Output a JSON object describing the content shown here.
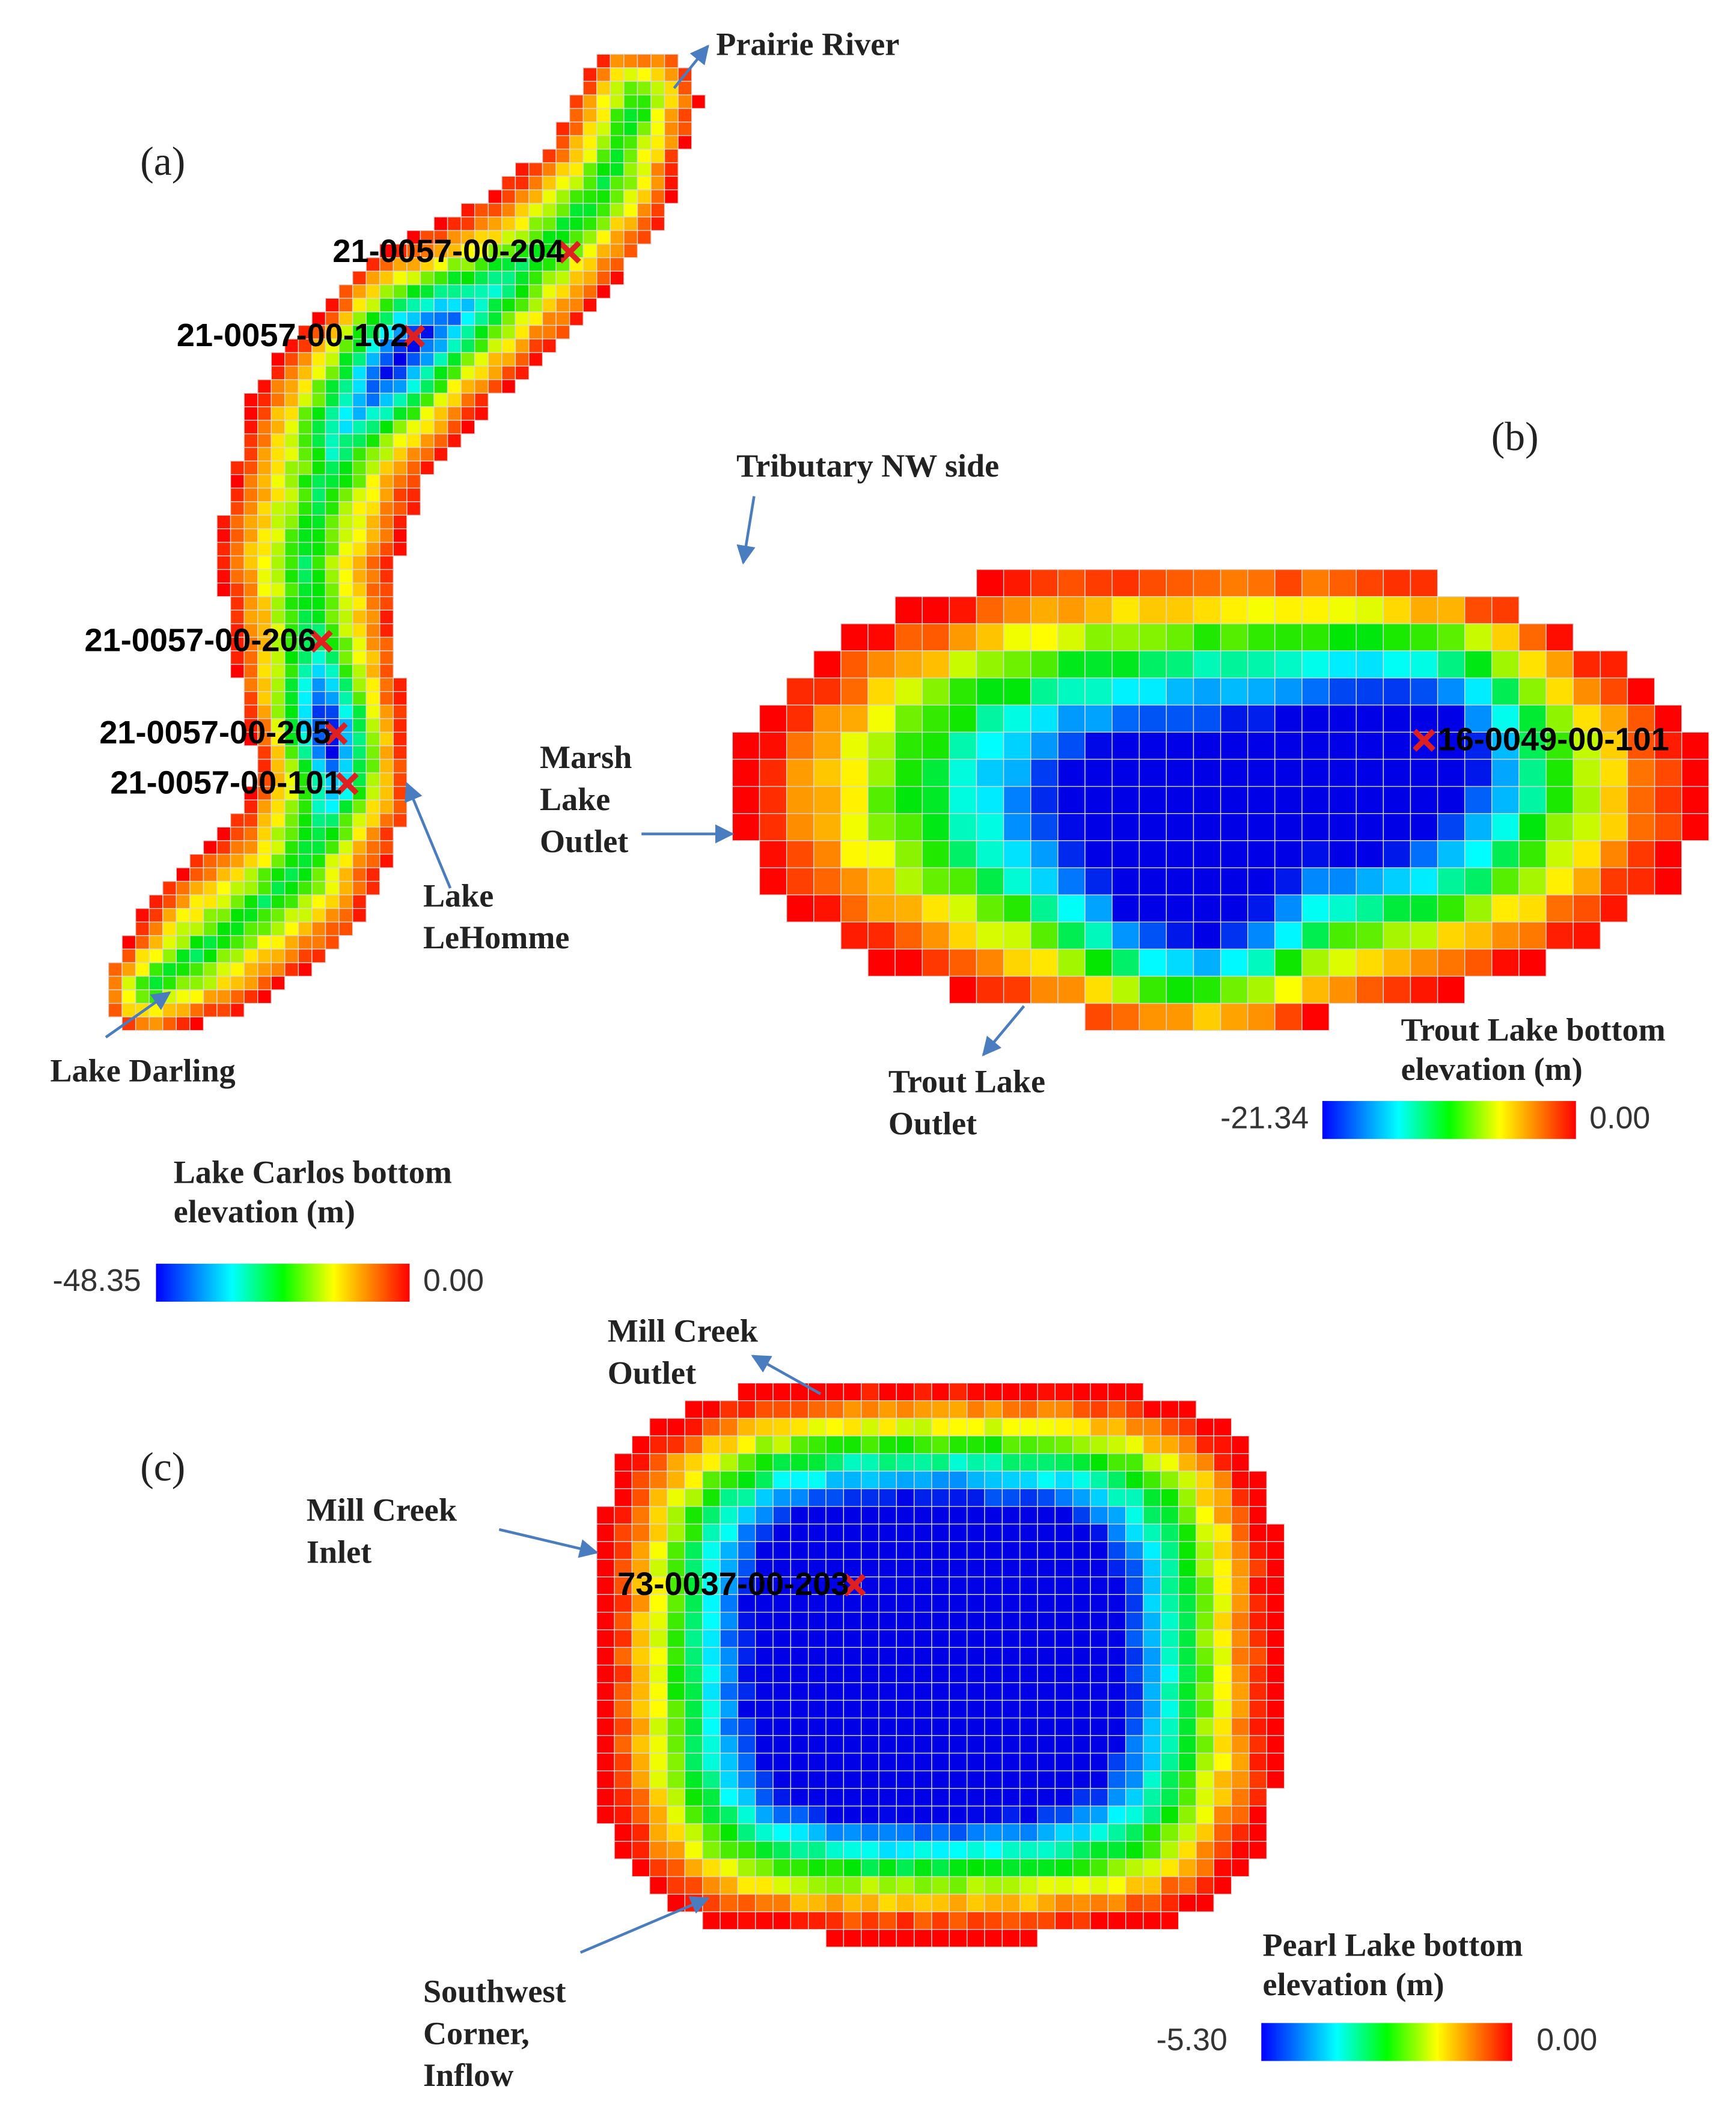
{
  "panels": [
    {
      "label": "(a)",
      "stations": [
        "21-0057-00-204",
        "21-0057-00-102",
        "21-0057-00-206",
        "21-0057-00-205",
        "21-0057-00-101"
      ],
      "annotations": [
        [
          "Prairie River"
        ],
        [
          "Lake",
          "LeHomme"
        ],
        [
          "Lake Darling"
        ]
      ],
      "legend": {
        "title": [
          "Lake Carlos bottom",
          "elevation (m)"
        ],
        "min": "-48.35",
        "max": "0.00"
      }
    },
    {
      "label": "(b)",
      "stations": [
        "16-0049-00-101"
      ],
      "annotations": [
        [
          "Tributary NW side"
        ],
        [
          "Marsh",
          "Lake",
          "Outlet"
        ],
        [
          "Trout Lake",
          "Outlet"
        ]
      ],
      "legend": {
        "title": [
          "Trout Lake bottom",
          "elevation (m)"
        ],
        "min": "-21.34",
        "max": "0.00"
      }
    },
    {
      "label": "(c)",
      "stations": [
        "73-0037-00-203"
      ],
      "annotations": [
        [
          "Mill Creek",
          "Outlet"
        ],
        [
          "Mill Creek",
          "Inlet"
        ],
        [
          "Southwest",
          "Corner,",
          "Inflow"
        ]
      ],
      "legend": {
        "title": [
          "Pearl Lake bottom",
          "elevation (m)"
        ],
        "min": "-5.30",
        "max": "0.00"
      }
    }
  ]
}
